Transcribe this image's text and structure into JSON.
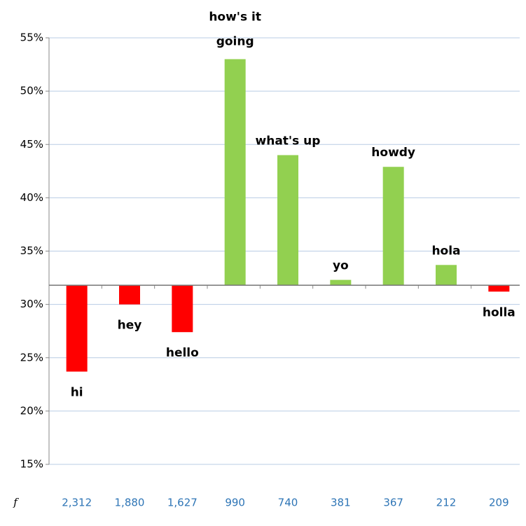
{
  "chart_data": {
    "type": "bar",
    "categories": [
      "hi",
      "hey",
      "hello",
      "how's it going",
      "what's up",
      "yo",
      "howdy",
      "hola",
      "holla"
    ],
    "values": [
      23.7,
      30.0,
      27.4,
      53.0,
      44.0,
      32.3,
      42.9,
      33.7,
      31.2
    ],
    "baseline": 31.8,
    "color_above": "#92d050",
    "color_below": "#ff0000",
    "ylim": [
      15,
      55
    ],
    "yticks": [
      {
        "value": 15,
        "label": "15%"
      },
      {
        "value": 20,
        "label": "20%"
      },
      {
        "value": 25,
        "label": "25%"
      },
      {
        "value": 30,
        "label": "30%"
      },
      {
        "value": 35,
        "label": "35%"
      },
      {
        "value": 40,
        "label": "40%"
      },
      {
        "value": 45,
        "label": "45%"
      },
      {
        "value": 50,
        "label": "50%"
      },
      {
        "value": 55,
        "label": "55%"
      }
    ],
    "grid": true,
    "frequency_label": "f",
    "frequencies": [
      "2,312",
      "1,880",
      "1,627",
      "990",
      "740",
      "381",
      "367",
      "212",
      "209"
    ]
  }
}
